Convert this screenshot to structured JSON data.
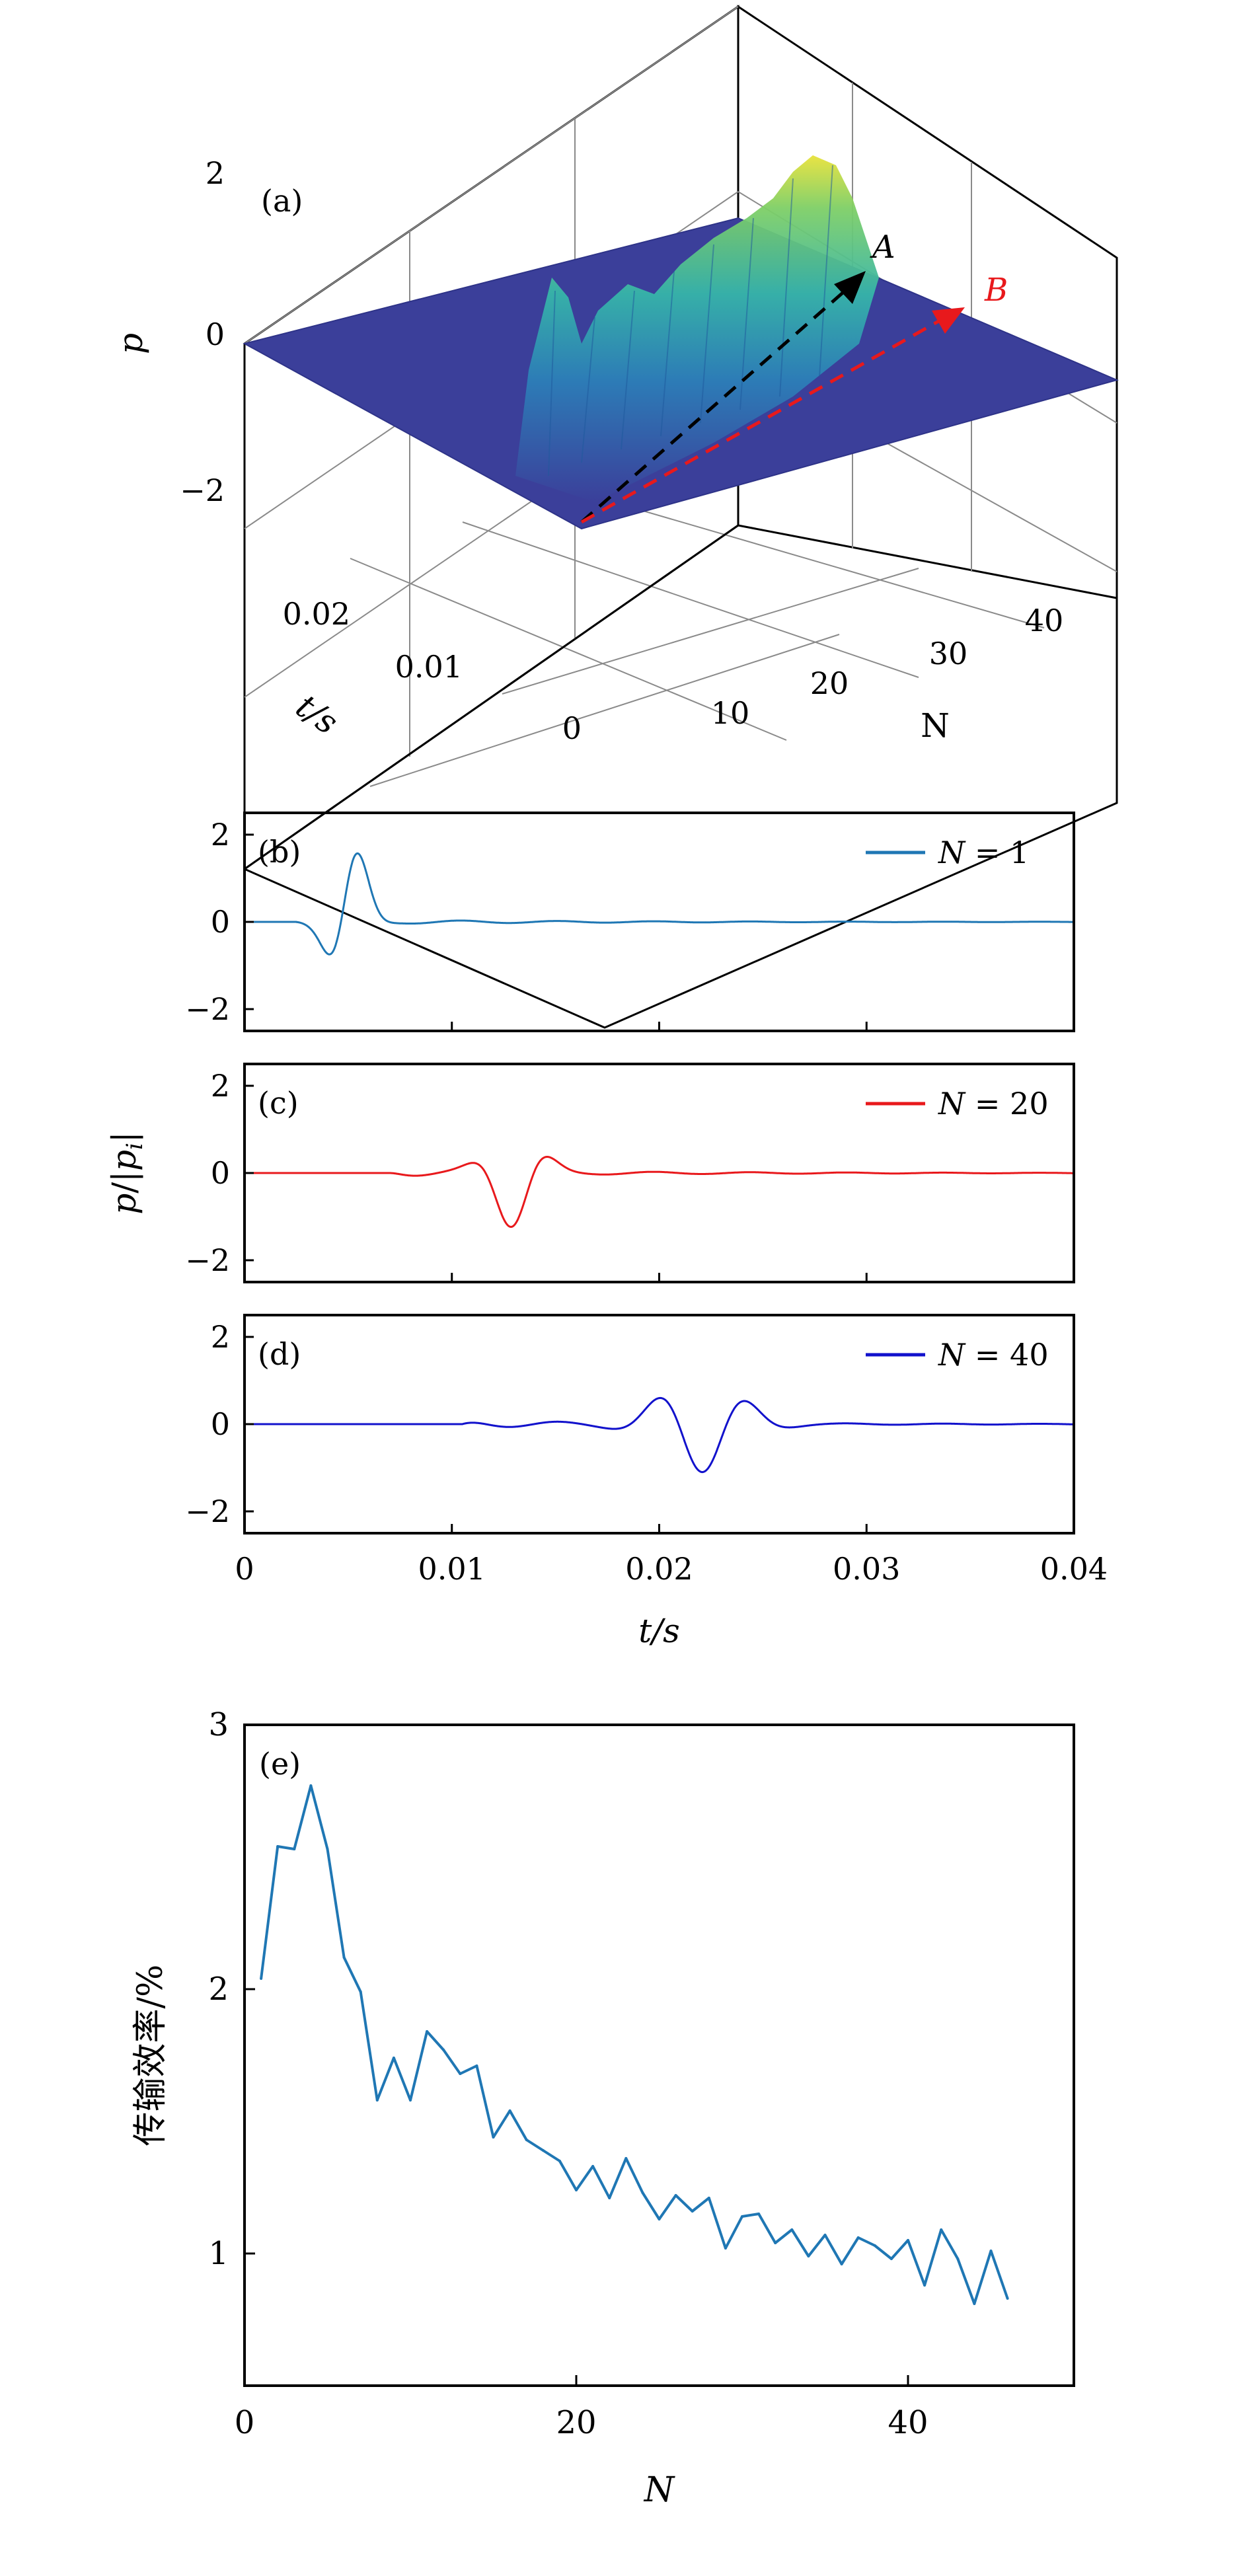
{
  "figure_title": "",
  "chart_data": [
    {
      "panel": "(a)",
      "type": "surface3d",
      "title": "",
      "xlabel": "N",
      "ylabel": "t/s",
      "zlabel": "p",
      "x_ticks": [
        "10",
        "20",
        "30",
        "40"
      ],
      "y_ticks": [
        "0",
        "0.01",
        "0.02"
      ],
      "z_ticks": [
        "−2",
        "0",
        "2"
      ],
      "xlim": [
        1,
        46
      ],
      "ylim": [
        0,
        0.025
      ],
      "zlim": [
        -2.5,
        2.5
      ],
      "arrows": [
        {
          "label": "A",
          "color": "#000000"
        },
        {
          "label": "B",
          "color": "#e8191c"
        }
      ]
    },
    {
      "panel": "(b)",
      "type": "line",
      "legend": "N = 1",
      "legend_var": "N",
      "legend_value": "1",
      "color": "#1f77b4",
      "xlim": [
        0,
        0.04
      ],
      "ylim": [
        -2.5,
        2.5
      ],
      "y_ticks": [
        "2",
        "0",
        "−2"
      ],
      "packet": {
        "onset": 0.0025,
        "center": 0.005,
        "width": 0.0011,
        "amplitude": 2.05,
        "tail_amp": 0.06,
        "cycles": 215
      }
    },
    {
      "panel": "(c)",
      "type": "line",
      "legend": "N = 20",
      "legend_var": "N",
      "legend_value": "20",
      "color": "#e8191c",
      "xlim": [
        0,
        0.04
      ],
      "ylim": [
        -2.5,
        2.5
      ],
      "y_ticks": [
        "2",
        "0",
        "−2"
      ],
      "packet": {
        "onset": 0.007,
        "center": 0.013,
        "width": 0.0016,
        "amplitude": 1.2,
        "tail_amp": 0.08,
        "cycles": 215
      }
    },
    {
      "panel": "(d)",
      "type": "line",
      "legend": "N = 40",
      "legend_var": "N",
      "legend_value": "40",
      "color": "#1212cc",
      "xlim": [
        0,
        0.04
      ],
      "ylim": [
        -2.5,
        2.5
      ],
      "y_ticks": [
        "2",
        "0",
        "−2"
      ],
      "xlabel": "t/s",
      "x_ticks": [
        "0",
        "0.01",
        "0.02",
        "0.03",
        "0.04"
      ],
      "packet": {
        "onset": 0.0105,
        "center": 0.022,
        "width": 0.0026,
        "amplitude": 1.07,
        "tail_amp": 0.08,
        "cycles": 215
      }
    },
    {
      "panel": "(e)",
      "type": "line",
      "color": "#1f77b4",
      "xlabel": "N",
      "ylabel": "传输效率/%",
      "xlim": [
        0,
        50
      ],
      "ylim": [
        0.5,
        3
      ],
      "x_ticks": [
        "0",
        "20",
        "40"
      ],
      "y_ticks": [
        "1",
        "2",
        "3"
      ],
      "x": [
        1,
        2,
        3,
        4,
        5,
        6,
        7,
        8,
        9,
        10,
        11,
        12,
        13,
        14,
        15,
        16,
        17,
        18,
        19,
        20,
        21,
        22,
        23,
        24,
        25,
        26,
        27,
        28,
        29,
        30,
        31,
        32,
        33,
        34,
        35,
        36,
        37,
        38,
        39,
        40,
        41,
        42,
        43,
        44,
        45,
        46
      ],
      "y": [
        2.04,
        2.54,
        2.53,
        2.77,
        2.53,
        2.12,
        1.99,
        1.58,
        1.74,
        1.58,
        1.84,
        1.77,
        1.68,
        1.71,
        1.44,
        1.54,
        1.43,
        1.39,
        1.35,
        1.24,
        1.33,
        1.21,
        1.36,
        1.23,
        1.13,
        1.22,
        1.16,
        1.21,
        1.02,
        1.14,
        1.15,
        1.04,
        1.09,
        0.99,
        1.07,
        0.96,
        1.06,
        1.03,
        0.98,
        1.05,
        0.88,
        1.09,
        0.98,
        0.81,
        1.01,
        0.83
      ]
    }
  ],
  "shared": {
    "middle_ylabel": "p/|p_i|"
  }
}
